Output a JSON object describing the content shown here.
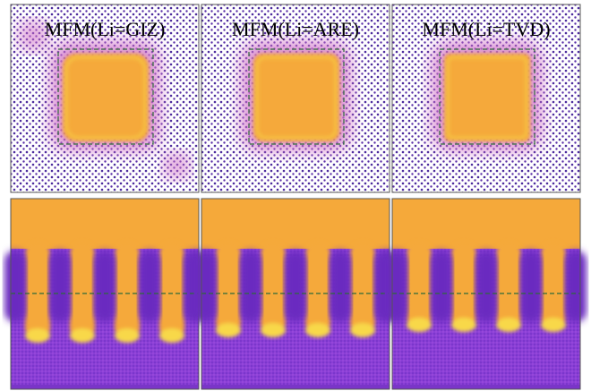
{
  "panels": [
    {
      "title": "MFM(Li=GIZ)"
    },
    {
      "title": "MFM(Li=ARE)"
    },
    {
      "title": "MFM(Li=TVD)"
    }
  ]
}
